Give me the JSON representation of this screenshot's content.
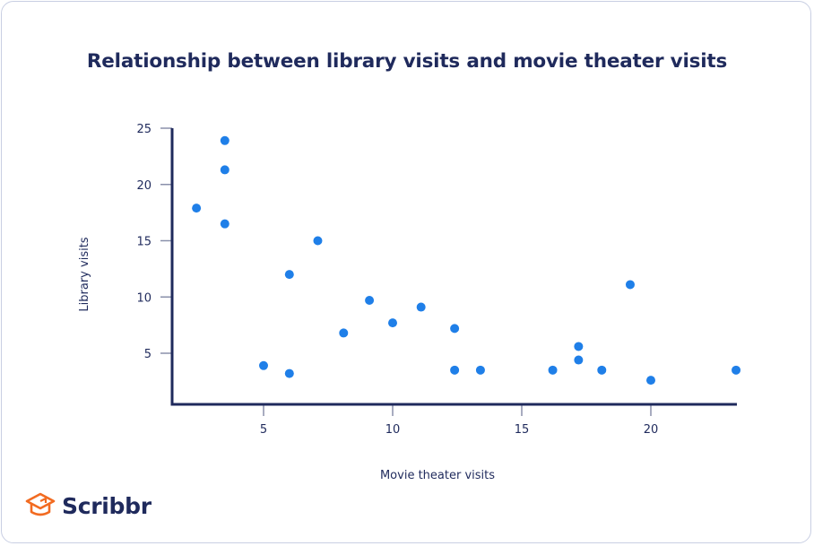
{
  "chart_data": {
    "type": "scatter",
    "title": "Relationship between library visits and movie theater visits",
    "xlabel": "Movie theater visits",
    "ylabel": "Library visits",
    "xlim": [
      1.5,
      23.4
    ],
    "ylim": [
      0.5,
      25
    ],
    "x_ticks": [
      5,
      10,
      15,
      20
    ],
    "y_ticks": [
      5,
      10,
      15,
      20,
      25
    ],
    "grid": false,
    "legend": null,
    "marker_color": "#1f7fe8",
    "axis_color": "#1f2a5c",
    "points": [
      {
        "x": 2.4,
        "y": 17.9
      },
      {
        "x": 3.5,
        "y": 23.9
      },
      {
        "x": 3.5,
        "y": 21.3
      },
      {
        "x": 3.5,
        "y": 16.5
      },
      {
        "x": 5.0,
        "y": 3.9
      },
      {
        "x": 6.0,
        "y": 12.0
      },
      {
        "x": 6.0,
        "y": 3.2
      },
      {
        "x": 7.1,
        "y": 15.0
      },
      {
        "x": 8.1,
        "y": 6.8
      },
      {
        "x": 9.1,
        "y": 9.7
      },
      {
        "x": 10.0,
        "y": 7.7
      },
      {
        "x": 11.1,
        "y": 9.1
      },
      {
        "x": 12.4,
        "y": 7.2
      },
      {
        "x": 12.4,
        "y": 3.5
      },
      {
        "x": 13.4,
        "y": 3.5
      },
      {
        "x": 16.2,
        "y": 3.5
      },
      {
        "x": 17.2,
        "y": 5.6
      },
      {
        "x": 17.2,
        "y": 4.4
      },
      {
        "x": 18.1,
        "y": 3.5
      },
      {
        "x": 19.2,
        "y": 11.1
      },
      {
        "x": 20.0,
        "y": 2.6
      },
      {
        "x": 23.3,
        "y": 3.5
      }
    ]
  },
  "brand": {
    "name": "Scribbr",
    "icon": "graduation-cap-icon",
    "icon_color": "#f26b21"
  }
}
